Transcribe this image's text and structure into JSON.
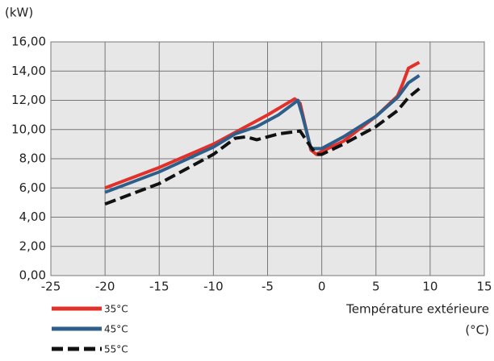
{
  "chart_data": {
    "type": "line",
    "ylabel": "(kW)",
    "xlabel": [
      "Température extérieure",
      "(°C)"
    ],
    "xlim": [
      -25,
      15
    ],
    "xticks": [
      -25,
      -20,
      -15,
      -10,
      -5,
      0,
      5,
      10,
      15
    ],
    "ylim": [
      0,
      16
    ],
    "yticks": [
      {
        "value": 0,
        "label": "0,00"
      },
      {
        "value": 2,
        "label": "2,00"
      },
      {
        "value": 4,
        "label": "4,00"
      },
      {
        "value": 6,
        "label": "6,00"
      },
      {
        "value": 8,
        "label": "8,00"
      },
      {
        "value": 10,
        "label": "10,00"
      },
      {
        "value": 12,
        "label": "12,00"
      },
      {
        "value": 14,
        "label": "14,00"
      },
      {
        "value": 16,
        "label": "16,00"
      }
    ],
    "grid": true,
    "series": [
      {
        "name": "35°C",
        "color": "#e2302a",
        "style": "solid",
        "x": [
          -20,
          -15,
          -10,
          -7,
          -5,
          -2.5,
          -2,
          -1,
          -0.5,
          0,
          2,
          5,
          7,
          7.5,
          8,
          9
        ],
        "values": [
          6.0,
          7.4,
          9.0,
          10.2,
          11.0,
          12.1,
          11.8,
          8.6,
          8.3,
          8.5,
          9.2,
          10.9,
          12.3,
          13.2,
          14.2,
          14.6
        ]
      },
      {
        "name": "45°C",
        "color": "#2e5f8a",
        "style": "solid",
        "x": [
          -20,
          -15,
          -10,
          -8,
          -6,
          -4,
          -2.2,
          -1.8,
          -1,
          0,
          2,
          5,
          7,
          8,
          9
        ],
        "values": [
          5.7,
          7.1,
          8.8,
          9.7,
          10.2,
          11.0,
          12.0,
          11.0,
          8.7,
          8.7,
          9.5,
          10.9,
          12.2,
          13.2,
          13.7
        ]
      },
      {
        "name": "55°C",
        "color": "#111111",
        "style": "dashed",
        "x": [
          -20,
          -15,
          -10,
          -8,
          -7,
          -6,
          -4,
          -2,
          -1,
          -0.5,
          0,
          2,
          5,
          7,
          8,
          9
        ],
        "values": [
          4.9,
          6.3,
          8.3,
          9.4,
          9.5,
          9.3,
          9.7,
          9.9,
          8.8,
          8.3,
          8.3,
          9.0,
          10.2,
          11.3,
          12.2,
          12.8
        ]
      }
    ]
  }
}
